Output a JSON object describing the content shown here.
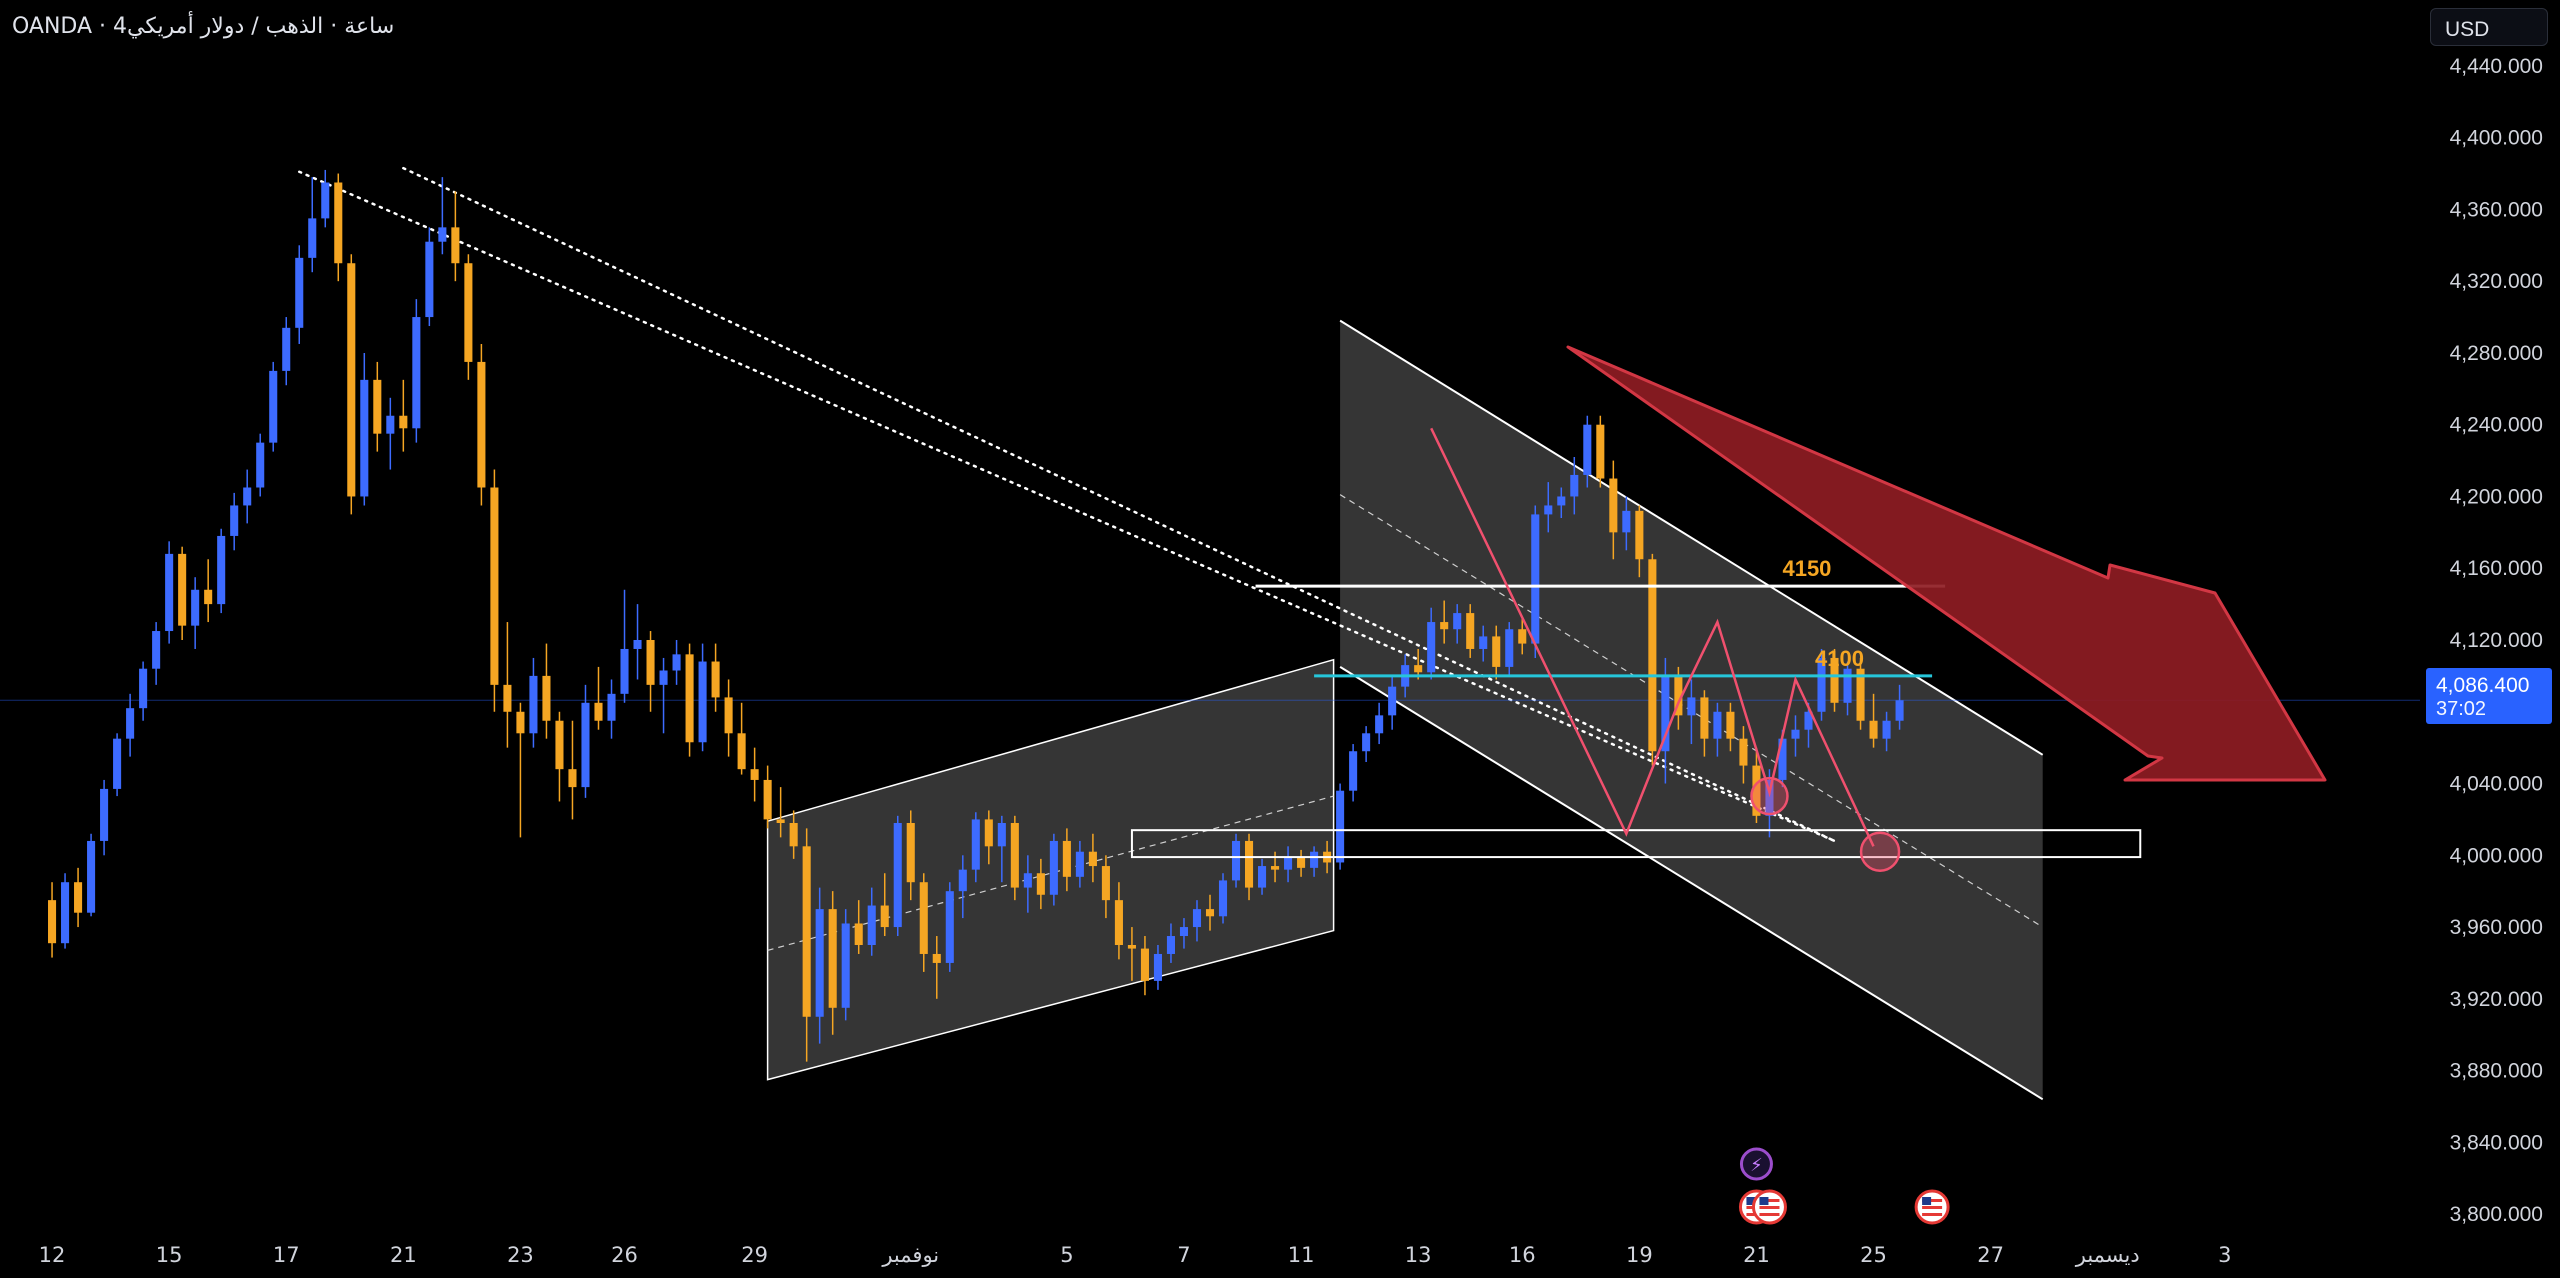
{
  "header": {
    "symbol_line": "OANDA · 4ساعة · الذهب / دولار أمريكي",
    "currency_label": "USD"
  },
  "last_price": {
    "value": "4,086.400",
    "countdown": "37:02",
    "color": "#2962ff"
  },
  "colors": {
    "background": "#000000",
    "up_candle": "#3d6bff",
    "down_candle": "#f5a623",
    "channel_fill": "#4a4a4a",
    "arrow": "#8e1c23",
    "projection": "#f0506e",
    "level_4100": "#26c6da",
    "label_text": "#f5a623"
  },
  "chart_data": {
    "type": "candlestick",
    "timeframe": "4h",
    "y_axis": {
      "labels": [
        "4,440.000",
        "4,400.000",
        "4,360.000",
        "4,320.000",
        "4,280.000",
        "4,240.000",
        "4,200.000",
        "4,160.000",
        "4,120.000",
        "4,080.000",
        "4,040.000",
        "4,000.000",
        "3,960.000",
        "3,920.000",
        "3,880.000",
        "3,840.000",
        "3,800.000"
      ],
      "ylim": [
        3780,
        4460
      ]
    },
    "x_axis": {
      "ticks": [
        {
          "label": "12",
          "t": 0
        },
        {
          "label": "15",
          "t": 9
        },
        {
          "label": "17",
          "t": 18
        },
        {
          "label": "21",
          "t": 27
        },
        {
          "label": "23",
          "t": 36
        },
        {
          "label": "26",
          "t": 44
        },
        {
          "label": "29",
          "t": 54
        },
        {
          "label": "نوفمبر",
          "t": 66
        },
        {
          "label": "5",
          "t": 78
        },
        {
          "label": "7",
          "t": 87
        },
        {
          "label": "11",
          "t": 96
        },
        {
          "label": "13",
          "t": 105
        },
        {
          "label": "16",
          "t": 113
        },
        {
          "label": "19",
          "t": 122
        },
        {
          "label": "21",
          "t": 131
        },
        {
          "label": "25",
          "t": 140
        },
        {
          "label": "27",
          "t": 149
        },
        {
          "label": "ديسمبر",
          "t": 158
        },
        {
          "label": "3",
          "t": 167
        }
      ],
      "xlim": [
        -4,
        182
      ]
    },
    "annotations": {
      "levels": [
        {
          "label": "4150",
          "price": 4150,
          "t_start": 92.5,
          "t_end": 145.5
        },
        {
          "label": "4100",
          "price": 4100,
          "t_start": 97,
          "t_end": 144.5
        }
      ],
      "zone": {
        "price_top": 4014,
        "price_bottom": 3999,
        "t_start": 83,
        "t_end": 160.5
      }
    },
    "candles": [
      {
        "o": 3975,
        "h": 3985,
        "l": 3943,
        "c": 3951
      },
      {
        "o": 3951,
        "h": 3990,
        "l": 3948,
        "c": 3985
      },
      {
        "o": 3985,
        "h": 3993,
        "l": 3960,
        "c": 3968
      },
      {
        "o": 3968,
        "h": 4012,
        "l": 3966,
        "c": 4008
      },
      {
        "o": 4008,
        "h": 4042,
        "l": 4000,
        "c": 4037
      },
      {
        "o": 4037,
        "h": 4068,
        "l": 4033,
        "c": 4065
      },
      {
        "o": 4065,
        "h": 4090,
        "l": 4055,
        "c": 4082
      },
      {
        "o": 4082,
        "h": 4108,
        "l": 4075,
        "c": 4104
      },
      {
        "o": 4104,
        "h": 4130,
        "l": 4095,
        "c": 4125
      },
      {
        "o": 4125,
        "h": 4175,
        "l": 4118,
        "c": 4168
      },
      {
        "o": 4168,
        "h": 4172,
        "l": 4120,
        "c": 4128
      },
      {
        "o": 4128,
        "h": 4155,
        "l": 4115,
        "c": 4148
      },
      {
        "o": 4148,
        "h": 4165,
        "l": 4130,
        "c": 4140
      },
      {
        "o": 4140,
        "h": 4182,
        "l": 4135,
        "c": 4178
      },
      {
        "o": 4178,
        "h": 4202,
        "l": 4170,
        "c": 4195
      },
      {
        "o": 4195,
        "h": 4215,
        "l": 4185,
        "c": 4205
      },
      {
        "o": 4205,
        "h": 4235,
        "l": 4200,
        "c": 4230
      },
      {
        "o": 4230,
        "h": 4275,
        "l": 4225,
        "c": 4270
      },
      {
        "o": 4270,
        "h": 4300,
        "l": 4262,
        "c": 4294
      },
      {
        "o": 4294,
        "h": 4340,
        "l": 4285,
        "c": 4333
      },
      {
        "o": 4333,
        "h": 4378,
        "l": 4325,
        "c": 4355
      },
      {
        "o": 4355,
        "h": 4382,
        "l": 4350,
        "c": 4375
      },
      {
        "o": 4375,
        "h": 4380,
        "l": 4320,
        "c": 4330
      },
      {
        "o": 4330,
        "h": 4335,
        "l": 4190,
        "c": 4200
      },
      {
        "o": 4200,
        "h": 4280,
        "l": 4195,
        "c": 4265
      },
      {
        "o": 4265,
        "h": 4275,
        "l": 4225,
        "c": 4235
      },
      {
        "o": 4235,
        "h": 4255,
        "l": 4215,
        "c": 4245
      },
      {
        "o": 4245,
        "h": 4265,
        "l": 4225,
        "c": 4238
      },
      {
        "o": 4238,
        "h": 4310,
        "l": 4230,
        "c": 4300
      },
      {
        "o": 4300,
        "h": 4350,
        "l": 4295,
        "c": 4342
      },
      {
        "o": 4342,
        "h": 4378,
        "l": 4335,
        "c": 4350
      },
      {
        "o": 4350,
        "h": 4370,
        "l": 4320,
        "c": 4330
      },
      {
        "o": 4330,
        "h": 4335,
        "l": 4265,
        "c": 4275
      },
      {
        "o": 4275,
        "h": 4285,
        "l": 4195,
        "c": 4205
      },
      {
        "o": 4205,
        "h": 4215,
        "l": 4080,
        "c": 4095
      },
      {
        "o": 4095,
        "h": 4130,
        "l": 4060,
        "c": 4080
      },
      {
        "o": 4080,
        "h": 4085,
        "l": 4010,
        "c": 4068
      },
      {
        "o": 4068,
        "h": 4110,
        "l": 4060,
        "c": 4100
      },
      {
        "o": 4100,
        "h": 4118,
        "l": 4065,
        "c": 4075
      },
      {
        "o": 4075,
        "h": 4080,
        "l": 4030,
        "c": 4048
      },
      {
        "o": 4048,
        "h": 4075,
        "l": 4020,
        "c": 4038
      },
      {
        "o": 4038,
        "h": 4095,
        "l": 4032,
        "c": 4085
      },
      {
        "o": 4085,
        "h": 4105,
        "l": 4070,
        "c": 4075
      },
      {
        "o": 4075,
        "h": 4098,
        "l": 4065,
        "c": 4090
      },
      {
        "o": 4090,
        "h": 4148,
        "l": 4085,
        "c": 4115
      },
      {
        "o": 4115,
        "h": 4140,
        "l": 4098,
        "c": 4120
      },
      {
        "o": 4120,
        "h": 4125,
        "l": 4080,
        "c": 4095
      },
      {
        "o": 4095,
        "h": 4110,
        "l": 4068,
        "c": 4103
      },
      {
        "o": 4103,
        "h": 4120,
        "l": 4095,
        "c": 4112
      },
      {
        "o": 4112,
        "h": 4118,
        "l": 4055,
        "c": 4063
      },
      {
        "o": 4063,
        "h": 4118,
        "l": 4058,
        "c": 4108
      },
      {
        "o": 4108,
        "h": 4118,
        "l": 4080,
        "c": 4088
      },
      {
        "o": 4088,
        "h": 4098,
        "l": 4055,
        "c": 4068
      },
      {
        "o": 4068,
        "h": 4085,
        "l": 4045,
        "c": 4048
      },
      {
        "o": 4048,
        "h": 4060,
        "l": 4030,
        "c": 4042
      },
      {
        "o": 4042,
        "h": 4050,
        "l": 4015,
        "c": 4020
      },
      {
        "o": 4020,
        "h": 4038,
        "l": 4010,
        "c": 4018
      },
      {
        "o": 4018,
        "h": 4025,
        "l": 3998,
        "c": 4005
      },
      {
        "o": 4005,
        "h": 4015,
        "l": 3885,
        "c": 3910
      },
      {
        "o": 3910,
        "h": 3982,
        "l": 3895,
        "c": 3970
      },
      {
        "o": 3970,
        "h": 3980,
        "l": 3900,
        "c": 3915
      },
      {
        "o": 3915,
        "h": 3970,
        "l": 3908,
        "c": 3962
      },
      {
        "o": 3962,
        "h": 3975,
        "l": 3945,
        "c": 3950
      },
      {
        "o": 3950,
        "h": 3982,
        "l": 3944,
        "c": 3972
      },
      {
        "o": 3972,
        "h": 3990,
        "l": 3955,
        "c": 3960
      },
      {
        "o": 3960,
        "h": 4022,
        "l": 3955,
        "c": 4018
      },
      {
        "o": 4018,
        "h": 4025,
        "l": 3975,
        "c": 3985
      },
      {
        "o": 3985,
        "h": 3990,
        "l": 3935,
        "c": 3945
      },
      {
        "o": 3945,
        "h": 3955,
        "l": 3920,
        "c": 3940
      },
      {
        "o": 3940,
        "h": 3985,
        "l": 3935,
        "c": 3980
      },
      {
        "o": 3980,
        "h": 4000,
        "l": 3965,
        "c": 3992
      },
      {
        "o": 3992,
        "h": 4024,
        "l": 3985,
        "c": 4020
      },
      {
        "o": 4020,
        "h": 4025,
        "l": 3995,
        "c": 4005
      },
      {
        "o": 4005,
        "h": 4022,
        "l": 3985,
        "c": 4018
      },
      {
        "o": 4018,
        "h": 4022,
        "l": 3975,
        "c": 3982
      },
      {
        "o": 3982,
        "h": 4000,
        "l": 3968,
        "c": 3990
      },
      {
        "o": 3990,
        "h": 3998,
        "l": 3970,
        "c": 3978
      },
      {
        "o": 3978,
        "h": 4012,
        "l": 3972,
        "c": 4008
      },
      {
        "o": 4008,
        "h": 4015,
        "l": 3980,
        "c": 3988
      },
      {
        "o": 3988,
        "h": 4008,
        "l": 3982,
        "c": 4002
      },
      {
        "o": 4002,
        "h": 4012,
        "l": 3985,
        "c": 3994
      },
      {
        "o": 3994,
        "h": 4000,
        "l": 3965,
        "c": 3975
      },
      {
        "o": 3975,
        "h": 3985,
        "l": 3942,
        "c": 3950
      },
      {
        "o": 3950,
        "h": 3960,
        "l": 3930,
        "c": 3948
      },
      {
        "o": 3948,
        "h": 3955,
        "l": 3922,
        "c": 3930
      },
      {
        "o": 3930,
        "h": 3950,
        "l": 3925,
        "c": 3945
      },
      {
        "o": 3945,
        "h": 3962,
        "l": 3940,
        "c": 3955
      },
      {
        "o": 3955,
        "h": 3965,
        "l": 3948,
        "c": 3960
      },
      {
        "o": 3960,
        "h": 3975,
        "l": 3952,
        "c": 3970
      },
      {
        "o": 3970,
        "h": 3978,
        "l": 3958,
        "c": 3966
      },
      {
        "o": 3966,
        "h": 3990,
        "l": 3962,
        "c": 3986
      },
      {
        "o": 3986,
        "h": 4012,
        "l": 3982,
        "c": 4008
      },
      {
        "o": 4008,
        "h": 4012,
        "l": 3975,
        "c": 3982
      },
      {
        "o": 3982,
        "h": 3998,
        "l": 3978,
        "c": 3994
      },
      {
        "o": 3994,
        "h": 4002,
        "l": 3985,
        "c": 3992
      },
      {
        "o": 3992,
        "h": 4005,
        "l": 3985,
        "c": 3999
      },
      {
        "o": 3999,
        "h": 4003,
        "l": 3988,
        "c": 3993
      },
      {
        "o": 3993,
        "h": 4005,
        "l": 3988,
        "c": 4002
      },
      {
        "o": 4002,
        "h": 4008,
        "l": 3990,
        "c": 3996
      },
      {
        "o": 3996,
        "h": 4040,
        "l": 3992,
        "c": 4036
      },
      {
        "o": 4036,
        "h": 4062,
        "l": 4030,
        "c": 4058
      },
      {
        "o": 4058,
        "h": 4072,
        "l": 4052,
        "c": 4068
      },
      {
        "o": 4068,
        "h": 4085,
        "l": 4062,
        "c": 4078
      },
      {
        "o": 4078,
        "h": 4100,
        "l": 4070,
        "c": 4094
      },
      {
        "o": 4094,
        "h": 4112,
        "l": 4088,
        "c": 4106
      },
      {
        "o": 4106,
        "h": 4115,
        "l": 4098,
        "c": 4102
      },
      {
        "o": 4102,
        "h": 4138,
        "l": 4098,
        "c": 4130
      },
      {
        "o": 4130,
        "h": 4142,
        "l": 4118,
        "c": 4126
      },
      {
        "o": 4126,
        "h": 4140,
        "l": 4118,
        "c": 4135
      },
      {
        "o": 4135,
        "h": 4140,
        "l": 4110,
        "c": 4115
      },
      {
        "o": 4115,
        "h": 4128,
        "l": 4108,
        "c": 4122
      },
      {
        "o": 4122,
        "h": 4128,
        "l": 4098,
        "c": 4105
      },
      {
        "o": 4105,
        "h": 4130,
        "l": 4100,
        "c": 4126
      },
      {
        "o": 4126,
        "h": 4132,
        "l": 4112,
        "c": 4118
      },
      {
        "o": 4118,
        "h": 4195,
        "l": 4110,
        "c": 4190
      },
      {
        "o": 4190,
        "h": 4208,
        "l": 4180,
        "c": 4195
      },
      {
        "o": 4195,
        "h": 4205,
        "l": 4188,
        "c": 4200
      },
      {
        "o": 4200,
        "h": 4222,
        "l": 4190,
        "c": 4212
      },
      {
        "o": 4212,
        "h": 4245,
        "l": 4205,
        "c": 4240
      },
      {
        "o": 4240,
        "h": 4245,
        "l": 4205,
        "c": 4210
      },
      {
        "o": 4210,
        "h": 4220,
        "l": 4165,
        "c": 4180
      },
      {
        "o": 4180,
        "h": 4200,
        "l": 4170,
        "c": 4192
      },
      {
        "o": 4192,
        "h": 4195,
        "l": 4155,
        "c": 4165
      },
      {
        "o": 4165,
        "h": 4168,
        "l": 4050,
        "c": 4058
      },
      {
        "o": 4058,
        "h": 4110,
        "l": 4040,
        "c": 4100
      },
      {
        "o": 4100,
        "h": 4105,
        "l": 4070,
        "c": 4078
      },
      {
        "o": 4078,
        "h": 4098,
        "l": 4062,
        "c": 4088
      },
      {
        "o": 4088,
        "h": 4092,
        "l": 4055,
        "c": 4065
      },
      {
        "o": 4065,
        "h": 4085,
        "l": 4055,
        "c": 4080
      },
      {
        "o": 4080,
        "h": 4085,
        "l": 4058,
        "c": 4065
      },
      {
        "o": 4065,
        "h": 4072,
        "l": 4040,
        "c": 4050
      },
      {
        "o": 4050,
        "h": 4060,
        "l": 4018,
        "c": 4022
      },
      {
        "o": 4022,
        "h": 4048,
        "l": 4010,
        "c": 4042
      },
      {
        "o": 4042,
        "h": 4070,
        "l": 4038,
        "c": 4065
      },
      {
        "o": 4065,
        "h": 4078,
        "l": 4055,
        "c": 4070
      },
      {
        "o": 4070,
        "h": 4085,
        "l": 4060,
        "c": 4080
      },
      {
        "o": 4080,
        "h": 4115,
        "l": 4075,
        "c": 4110
      },
      {
        "o": 4110,
        "h": 4115,
        "l": 4080,
        "c": 4085
      },
      {
        "o": 4085,
        "h": 4108,
        "l": 4078,
        "c": 4104
      },
      {
        "o": 4104,
        "h": 4110,
        "l": 4070,
        "c": 4075
      },
      {
        "o": 4075,
        "h": 4090,
        "l": 4060,
        "c": 4065
      },
      {
        "o": 4065,
        "h": 4080,
        "l": 4058,
        "c": 4075
      },
      {
        "o": 4075,
        "h": 4095,
        "l": 4070,
        "c": 4086.4
      }
    ]
  }
}
